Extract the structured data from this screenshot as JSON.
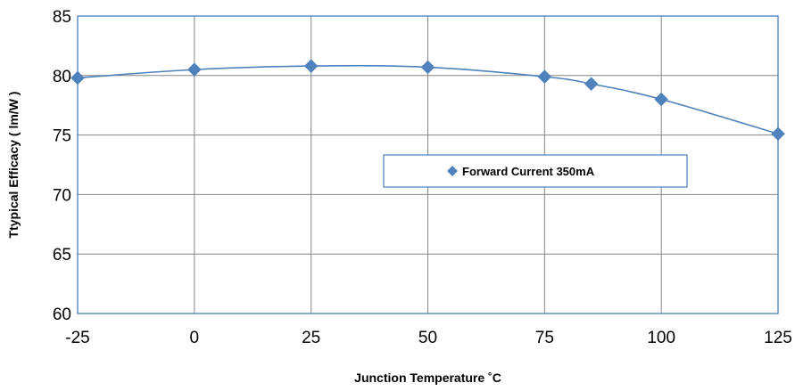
{
  "chart_data": {
    "type": "line",
    "xlabel": "Junction Temperature ˚C",
    "ylabel": "Ttypical Efficacy ( lm/W )",
    "x_ticks": [
      -25,
      0,
      25,
      50,
      75,
      100,
      125
    ],
    "y_ticks": [
      60,
      65,
      70,
      75,
      80,
      85
    ],
    "xlim": [
      -25,
      125
    ],
    "ylim": [
      60,
      85
    ],
    "grid": true,
    "legend_position": "center",
    "series": [
      {
        "name": "Forward  Current 350mA",
        "color": "#4f81bd",
        "marker": "diamond",
        "x": [
          -25,
          0,
          25,
          50,
          75,
          85,
          100,
          125
        ],
        "y": [
          79.8,
          80.5,
          80.8,
          80.7,
          79.9,
          79.3,
          78.0,
          75.1
        ]
      }
    ]
  }
}
